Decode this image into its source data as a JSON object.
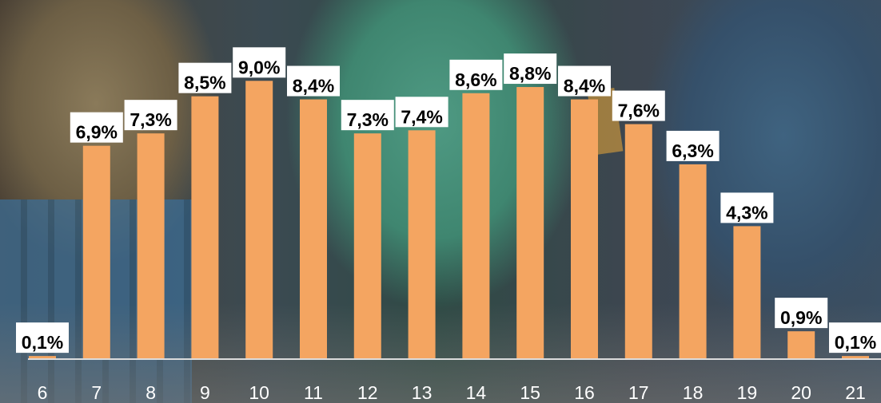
{
  "chart_data": {
    "type": "bar",
    "title": "",
    "xlabel": "",
    "ylabel": "",
    "categories": [
      "6",
      "7",
      "8",
      "9",
      "10",
      "11",
      "12",
      "13",
      "14",
      "15",
      "16",
      "17",
      "18",
      "19",
      "20",
      "21"
    ],
    "values": [
      0.1,
      6.9,
      7.3,
      8.5,
      9.0,
      8.4,
      7.3,
      7.4,
      8.6,
      8.8,
      8.4,
      7.6,
      6.3,
      4.3,
      0.9,
      0.1
    ],
    "data_labels": [
      "0,1%",
      "6,9%",
      "7,3%",
      "8,5%",
      "9,0%",
      "8,4%",
      "7,3%",
      "7,4%",
      "8,6%",
      "8,8%",
      "8,4%",
      "7,6%",
      "6,3%",
      "4,3%",
      "0,9%",
      "0,1%"
    ],
    "ylim": [
      0,
      10
    ],
    "grid": false,
    "legend": "none",
    "colors": {
      "bar": "#f4a561",
      "label_background": "#ffffff",
      "tick_text": "#ffffff",
      "axis": "#dcdcdc"
    }
  }
}
